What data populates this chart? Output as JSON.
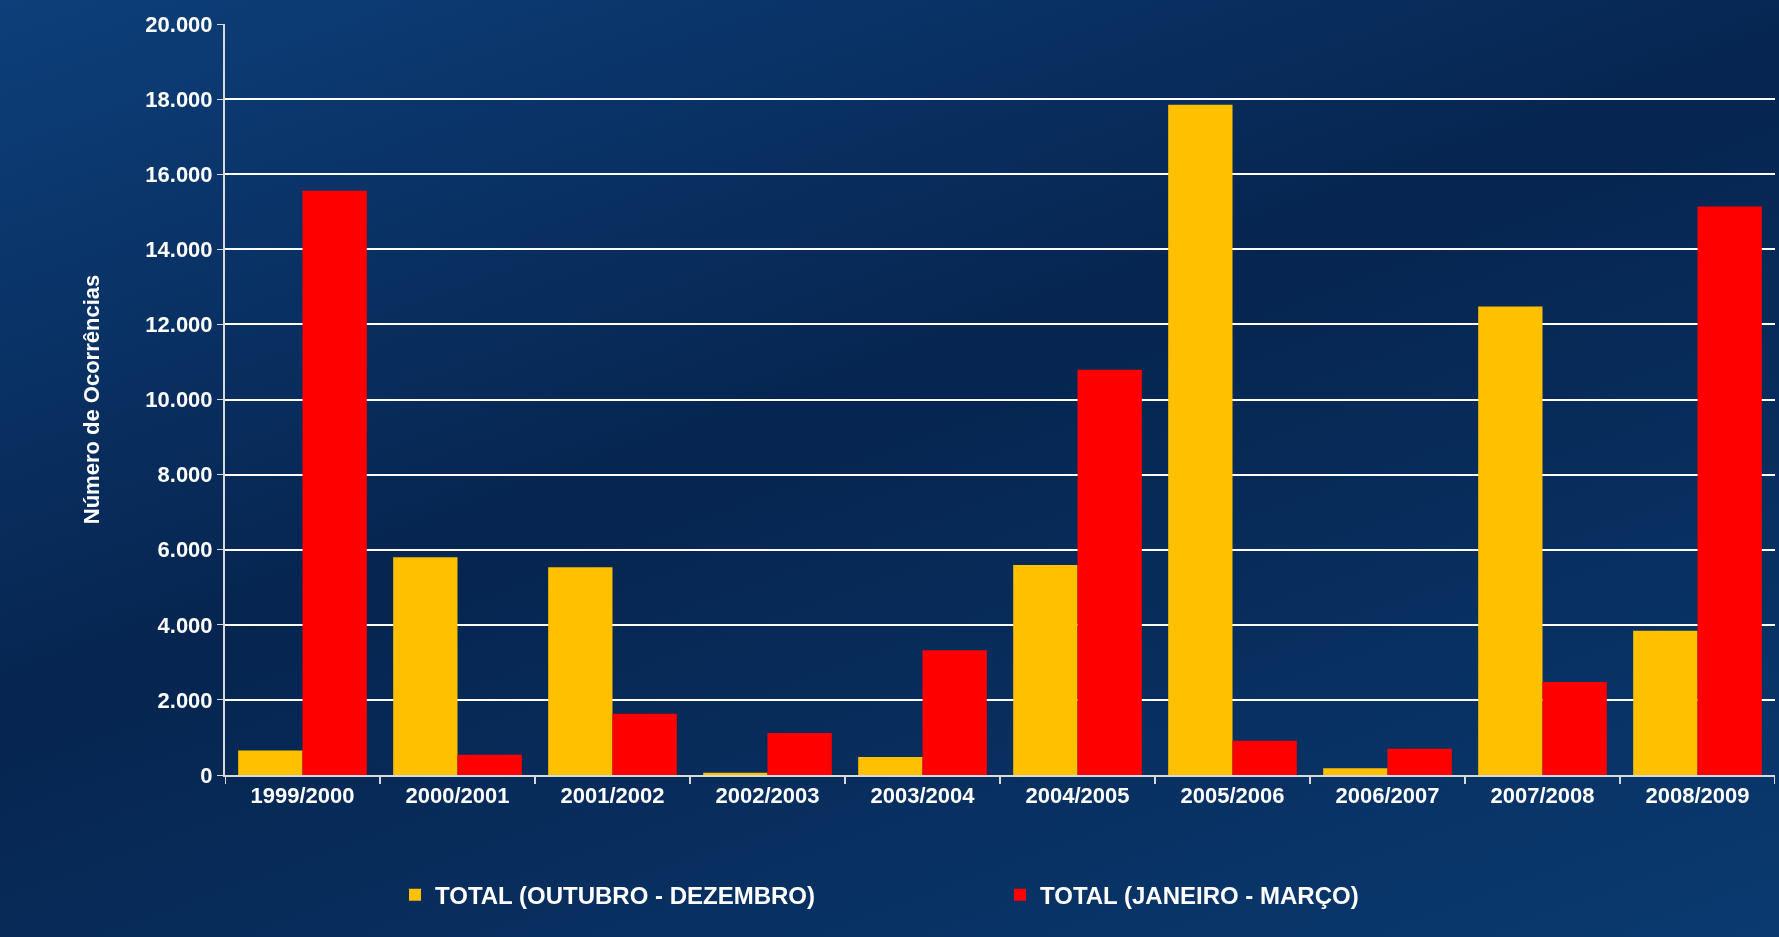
{
  "chart_data": {
    "type": "bar",
    "ylabel": "Número de Ocorrências",
    "categories": [
      "1999/2000",
      "2000/2001",
      "2001/2002",
      "2002/2003",
      "2003/2004",
      "2004/2005",
      "2005/2006",
      "2006/2007",
      "2007/2008",
      "2008/2009"
    ],
    "series": [
      {
        "name": "TOTAL (OUTUBRO - DEZEMBRO)",
        "color": "#ffc000",
        "values": [
          650,
          5800,
          5530,
          60,
          480,
          5590,
          17850,
          180,
          12480,
          3840
        ]
      },
      {
        "name": "TOTAL (JANEIRO - MARÇO)",
        "color": "#ff0000",
        "values": [
          15560,
          540,
          1630,
          1120,
          3320,
          10790,
          910,
          700,
          2480,
          15140
        ]
      }
    ],
    "ylim": [
      0,
      20000
    ],
    "yticks": [
      0,
      {
        "value": 2000,
        "label": "2.000"
      },
      {
        "value": 4000,
        "label": "4.000"
      },
      {
        "value": 6000,
        "label": "6.000"
      },
      {
        "value": 8000,
        "label": "8.000"
      },
      {
        "value": 10000,
        "label": "10.000"
      },
      {
        "value": 12000,
        "label": "12.000"
      },
      {
        "value": 14000,
        "label": "14.000"
      },
      {
        "value": 16000,
        "label": "16.000"
      },
      {
        "value": 18000,
        "label": "18.000"
      },
      {
        "value": 20000,
        "label": "20.000"
      }
    ],
    "grid": "y",
    "legend": "bottom"
  }
}
